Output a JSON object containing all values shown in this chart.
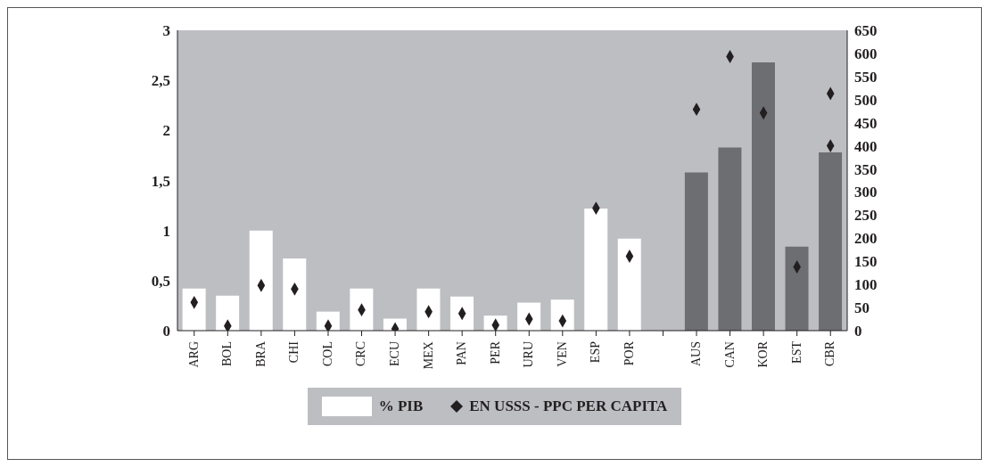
{
  "chart_data": {
    "type": "bar",
    "categories": [
      "ARG",
      "BOL",
      "BRA",
      "CHI",
      "COL",
      "CRC",
      "ECU",
      "MEX",
      "PAN",
      "PER",
      "URU",
      "VEN",
      "ESP",
      "POR",
      null,
      "AUS",
      "CAN",
      "KOR",
      "EST",
      "CBR"
    ],
    "series": [
      {
        "name": "% PIB",
        "color": "#ffffff",
        "colors": [
          "#ffffff",
          "#ffffff",
          "#ffffff",
          "#ffffff",
          "#ffffff",
          "#ffffff",
          "#ffffff",
          "#ffffff",
          "#ffffff",
          "#ffffff",
          "#ffffff",
          "#ffffff",
          "#ffffff",
          "#ffffff",
          "#ffffff",
          "#6d6e72",
          "#6d6e72",
          "#6d6e72",
          "#6d6e72",
          "#6d6e72"
        ],
        "values": [
          0.42,
          0.35,
          1.0,
          0.72,
          0.19,
          0.42,
          0.12,
          0.42,
          0.34,
          0.15,
          0.28,
          0.31,
          1.22,
          0.92,
          null,
          1.58,
          1.83,
          2.68,
          0.84,
          1.78
        ]
      },
      {
        "type": "scatter",
        "name": "EN USSS - PPC PER CAPITA",
        "color": "#231f20",
        "axis": "y2",
        "x": [
          "ARG",
          "BOL",
          "BRA",
          "CHI",
          "COL",
          "CRC",
          "ECU",
          "MEX",
          "PAN",
          "PER",
          "URU",
          "VEN",
          "ESP",
          "POR",
          "AUS",
          "CAN",
          "KOR",
          "EST",
          "CBR",
          "CBR"
        ],
        "values": [
          61,
          10,
          98,
          90,
          10,
          45,
          4,
          41,
          37,
          12,
          25,
          21,
          265,
          161,
          479,
          593,
          471,
          138,
          513,
          400
        ]
      }
    ],
    "ylim": [
      0,
      3
    ],
    "yticks": [
      0,
      {
        "value": 0.5,
        "label": "0,5"
      },
      1,
      {
        "value": 1.5,
        "label": "1,5"
      },
      2,
      {
        "value": 2.5,
        "label": "2,5"
      },
      3
    ],
    "y2lim": [
      0,
      650
    ],
    "y2ticks": [
      0,
      50,
      100,
      150,
      200,
      250,
      300,
      350,
      400,
      450,
      500,
      550,
      600,
      650
    ],
    "marker": "diamond",
    "legend": "bottom"
  }
}
